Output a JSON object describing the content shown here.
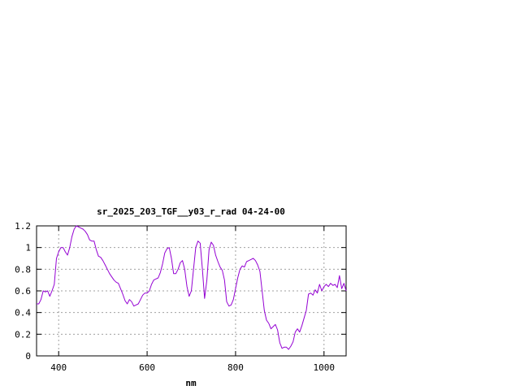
{
  "chart_data": {
    "type": "line",
    "title": "sr_2025_203_TGF__y03_r_rad 04-24-00",
    "xlabel": "nm",
    "ylabel": "",
    "xlim": [
      350,
      1050
    ],
    "ylim": [
      0,
      1.2
    ],
    "x_ticks": [
      "400",
      "600",
      "800",
      "1000"
    ],
    "x_tick_values": [
      400,
      600,
      800,
      1000
    ],
    "y_ticks": [
      "0",
      "0.2",
      "0.4",
      "0.6",
      "0.8",
      "1",
      "1.2"
    ],
    "y_tick_values": [
      0,
      0.2,
      0.4,
      0.6,
      0.8,
      1.0,
      1.2
    ],
    "grid": true,
    "line_color": "#9400d3",
    "series": [
      {
        "x": [
          350,
          355,
          360,
          365,
          370,
          375,
          380,
          385,
          390,
          395,
          400,
          405,
          410,
          415,
          420,
          425,
          430,
          435,
          440,
          445,
          450,
          455,
          460,
          465,
          470,
          475,
          480,
          485,
          490,
          495,
          500,
          505,
          510,
          515,
          520,
          525,
          530,
          535,
          540,
          545,
          550,
          555,
          560,
          565,
          570,
          575,
          580,
          585,
          590,
          595,
          600,
          605,
          610,
          615,
          620,
          625,
          630,
          635,
          640,
          645,
          650,
          655,
          660,
          665,
          670,
          675,
          680,
          685,
          690,
          695,
          700,
          705,
          710,
          715,
          720,
          725,
          730,
          735,
          740,
          745,
          750,
          755,
          760,
          765,
          770,
          775,
          780,
          785,
          790,
          795,
          800,
          805,
          810,
          815,
          820,
          825,
          830,
          835,
          840,
          845,
          850,
          855,
          860,
          865,
          870,
          875,
          880,
          885,
          890,
          895,
          900,
          905,
          910,
          915,
          920,
          925,
          930,
          935,
          940,
          945,
          950,
          955,
          960,
          965,
          970,
          975,
          980,
          985,
          990,
          995,
          1000,
          1005,
          1010,
          1015,
          1020,
          1025,
          1030,
          1035,
          1040,
          1045,
          1050
        ],
        "y": [
          0.48,
          0.48,
          0.52,
          0.6,
          0.59,
          0.6,
          0.55,
          0.6,
          0.66,
          0.9,
          0.96,
          1.0,
          1.0,
          0.96,
          0.93,
          1.0,
          1.1,
          1.17,
          1.2,
          1.19,
          1.18,
          1.17,
          1.15,
          1.12,
          1.07,
          1.06,
          1.06,
          0.98,
          0.92,
          0.91,
          0.88,
          0.84,
          0.8,
          0.76,
          0.73,
          0.7,
          0.68,
          0.67,
          0.62,
          0.57,
          0.51,
          0.48,
          0.52,
          0.5,
          0.46,
          0.47,
          0.48,
          0.52,
          0.56,
          0.58,
          0.58,
          0.6,
          0.66,
          0.7,
          0.71,
          0.72,
          0.77,
          0.85,
          0.95,
          0.99,
          1.0,
          0.9,
          0.76,
          0.76,
          0.8,
          0.86,
          0.88,
          0.8,
          0.64,
          0.55,
          0.6,
          0.8,
          1.0,
          1.06,
          1.04,
          0.8,
          0.53,
          0.7,
          0.98,
          1.05,
          1.02,
          0.93,
          0.87,
          0.82,
          0.79,
          0.7,
          0.5,
          0.46,
          0.47,
          0.52,
          0.62,
          0.72,
          0.8,
          0.83,
          0.82,
          0.87,
          0.88,
          0.89,
          0.9,
          0.88,
          0.84,
          0.78,
          0.6,
          0.42,
          0.33,
          0.3,
          0.25,
          0.27,
          0.29,
          0.24,
          0.12,
          0.07,
          0.08,
          0.08,
          0.06,
          0.09,
          0.13,
          0.22,
          0.25,
          0.22,
          0.28,
          0.35,
          0.42,
          0.57,
          0.58,
          0.56,
          0.61,
          0.58,
          0.66,
          0.6,
          0.64,
          0.66,
          0.64,
          0.67,
          0.65,
          0.66,
          0.63,
          0.74,
          0.62,
          0.67,
          0.6
        ]
      }
    ]
  }
}
